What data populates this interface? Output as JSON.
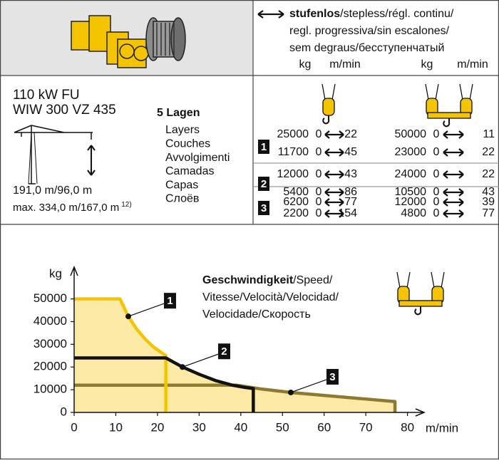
{
  "header": {
    "mode": "stufenlos",
    "mode_translations": [
      "/stepless/régl. continu/",
      "regl. progressiva/sin escalones/",
      "sem degraus/бесступенчатый"
    ],
    "units": [
      "kg",
      "m/min",
      "kg",
      "m/min"
    ]
  },
  "motor": {
    "power": "110 kW FU",
    "model": "WIW 300 VZ 435",
    "rope_lengths": "191,0 m/96,0 m",
    "max_rope": "max. 334,0 m/167,0 m",
    "max_rope_note": "12)"
  },
  "layers": {
    "title": "5 Lagen",
    "translations": [
      "Layers",
      "Couches",
      "Avvolgimenti",
      "Camadas",
      "Capas",
      "Слоёв"
    ]
  },
  "table": {
    "groups": [
      {
        "layer": "1",
        "rows": [
          [
            25000,
            0,
            22,
            50000,
            0,
            11
          ],
          [
            11700,
            0,
            45,
            23000,
            0,
            22
          ]
        ]
      },
      {
        "layer": "2",
        "rows": [
          [
            12000,
            0,
            43,
            24000,
            0,
            22
          ],
          [
            5400,
            0,
            86,
            10500,
            0,
            43
          ]
        ]
      },
      {
        "layer": "3",
        "rows": [
          [
            6200,
            0,
            77,
            12000,
            0,
            39
          ],
          [
            2200,
            0,
            154,
            4800,
            0,
            77
          ]
        ]
      }
    ]
  },
  "chart_data": {
    "type": "line",
    "title": "Geschwindigkeit",
    "subtitle_lines": [
      "/Speed/",
      "Vitesse/Velocità/Velocidad/",
      "Velocidade/Скорость"
    ],
    "y_label": "kg",
    "x_label": "m/min",
    "fill": "#fce9a6",
    "xlim": [
      0,
      84
    ],
    "ylim": [
      0,
      64000
    ],
    "xticks": [
      0,
      10,
      20,
      30,
      40,
      50,
      60,
      70,
      80
    ],
    "yticks": [
      0,
      10000,
      20000,
      30000,
      40000,
      50000
    ],
    "series": [
      {
        "name": "1",
        "color": "#f5c400",
        "x": [
          0,
          11,
          13,
          15,
          17,
          19,
          22,
          22
        ],
        "values": [
          50000,
          50000,
          42300,
          36700,
          32400,
          28900,
          25000,
          0
        ]
      },
      {
        "name": "2",
        "color": "#111111",
        "x": [
          0,
          22,
          26,
          30,
          34,
          38,
          41,
          43,
          43
        ],
        "values": [
          24000,
          24000,
          20000,
          16800,
          14000,
          12000,
          11000,
          10500,
          0
        ]
      },
      {
        "name": "3",
        "color": "#8c7a2e",
        "x": [
          0,
          39,
          45,
          52,
          60,
          70,
          77,
          77
        ],
        "values": [
          12000,
          12000,
          10300,
          8800,
          7500,
          5900,
          4800,
          0
        ]
      }
    ]
  }
}
